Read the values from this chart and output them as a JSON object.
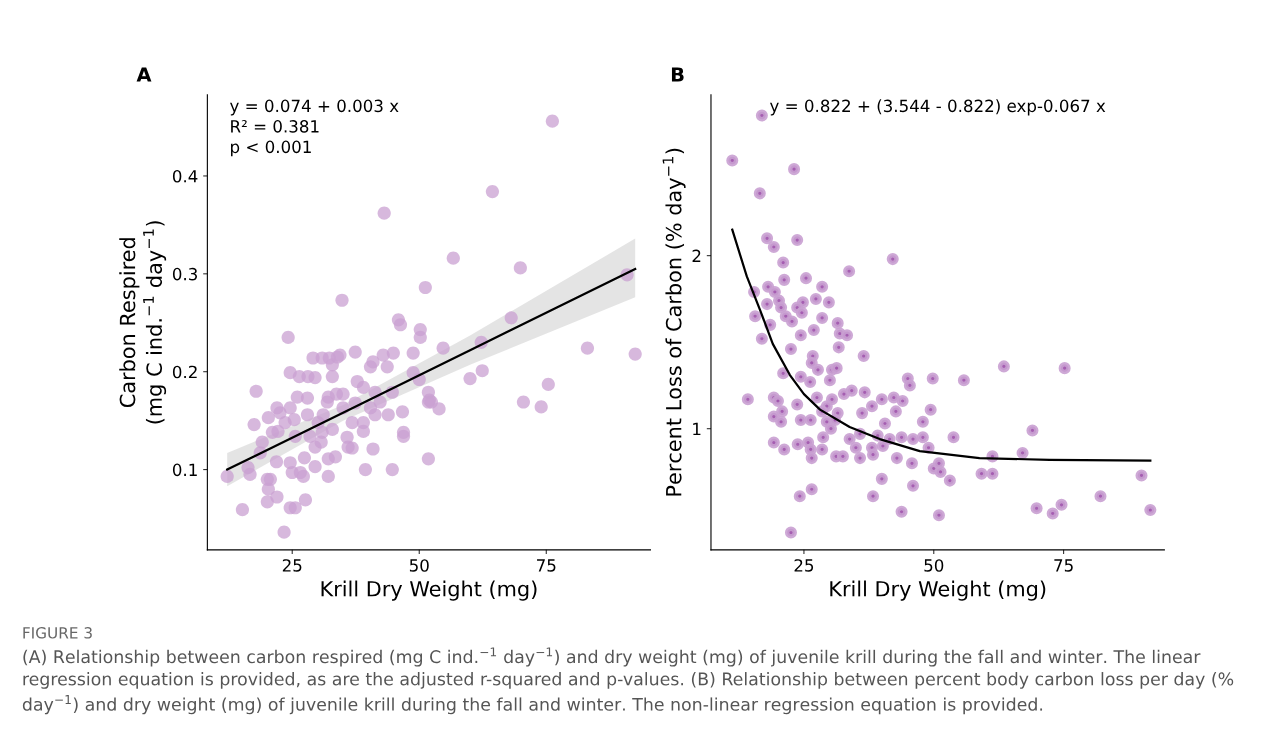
{
  "chart_data": [
    {
      "type": "scatter",
      "title": "A",
      "xlabel": "Krill Dry Weight (mg)",
      "ylabel": "Carbon Respired\n(mg C ind.$^{−1}$ day$^{−1}$)",
      "xlim": [
        8.3,
        95.5
      ],
      "ylim": [
        0.018,
        0.483
      ],
      "xticks": [
        25,
        50,
        75
      ],
      "yticks": [
        0.1,
        0.2,
        0.3,
        0.4
      ],
      "grid": false,
      "legend": false,
      "annotations": [
        "y = 0.074 + 0.003 x",
        "R² = 0.381",
        "p < 0.001"
      ],
      "series": [
        {
          "marker": "circle",
          "color": "#c9a0d2",
          "x": [
            12.2,
            15.2,
            16.3,
            16.7,
            17.9,
            17.5,
            19.1,
            18.7,
            20.1,
            20.3,
            20.7,
            20.1,
            22.0,
            21.9,
            22.0,
            20.3,
            21.1,
            22.2,
            22.6,
            23.6,
            23.4,
            24.6,
            25.6,
            24.2,
            24.6,
            24.6,
            25.0,
            25.6,
            26.0,
            24.6,
            25.4,
            26.4,
            26.6,
            27.2,
            27.6,
            27.4,
            28.0,
            28.0,
            28.1,
            28.5,
            29.5,
            29.1,
            29.5,
            29.5,
            30.1,
            30.9,
            30.7,
            30.9,
            31.1,
            31.9,
            32.1,
            32.3,
            32.9,
            32.9,
            32.1,
            32.1,
            32.9,
            33.5,
            33.9,
            33.7,
            34.4,
            34.8,
            35.0,
            35.0,
            35.8,
            36.0,
            36.8,
            36.8,
            37.4,
            37.4,
            37.8,
            39.0,
            39.0,
            39.0,
            39.4,
            40.4,
            40.4,
            40.9,
            40.9,
            41.3,
            41.3,
            42.3,
            42.9,
            43.1,
            43.7,
            43.9,
            44.7,
            44.7,
            44.9,
            45.9,
            46.3,
            46.7,
            46.9,
            46.9,
            48.8,
            48.8,
            50.2,
            50.2,
            50.0,
            51.2,
            51.8,
            51.8,
            51.8,
            76.2,
            64.4,
            56.7,
            69.9,
            90.9,
            68.1,
            54.7,
            62.2,
            83.1,
            92.5,
            62.4,
            60.0,
            75.4,
            52.0,
            52.4,
            53.9,
            70.5,
            74.0
          ],
          "values": [
            0.093,
            0.059,
            0.102,
            0.095,
            0.18,
            0.146,
            0.128,
            0.117,
            0.09,
            0.08,
            0.09,
            0.067,
            0.072,
            0.108,
            0.163,
            0.153,
            0.138,
            0.139,
            0.158,
            0.148,
            0.036,
            0.061,
            0.061,
            0.235,
            0.199,
            0.107,
            0.097,
            0.134,
            0.174,
            0.163,
            0.151,
            0.195,
            0.097,
            0.093,
            0.069,
            0.112,
            0.173,
            0.156,
            0.195,
            0.134,
            0.194,
            0.214,
            0.123,
            0.103,
            0.148,
            0.138,
            0.128,
            0.214,
            0.156,
            0.169,
            0.174,
            0.214,
            0.207,
            0.195,
            0.111,
            0.093,
            0.141,
            0.113,
            0.215,
            0.177,
            0.217,
            0.273,
            0.177,
            0.163,
            0.133,
            0.123,
            0.148,
            0.122,
            0.22,
            0.168,
            0.19,
            0.184,
            0.148,
            0.139,
            0.1,
            0.205,
            0.163,
            0.121,
            0.21,
            0.179,
            0.156,
            0.169,
            0.217,
            0.362,
            0.205,
            0.156,
            0.179,
            0.1,
            0.219,
            0.253,
            0.248,
            0.159,
            0.134,
            0.138,
            0.219,
            0.199,
            0.243,
            0.235,
            0.192,
            0.286,
            0.179,
            0.169,
            0.111,
            0.456,
            0.384,
            0.316,
            0.306,
            0.299,
            0.255,
            0.224,
            0.23,
            0.224,
            0.218,
            0.201,
            0.193,
            0.187,
            0.171,
            0.169,
            0.162,
            0.169,
            0.164
          ]
        },
        {
          "type": "line",
          "color": "#000000",
          "x": [
            12.2,
            35.0,
            60.0,
            92.5
          ],
          "values": [
            0.1,
            0.158,
            0.222,
            0.305
          ],
          "lower": [
            0.083,
            0.15,
            0.207,
            0.276
          ],
          "upper": [
            0.117,
            0.166,
            0.237,
            0.336
          ]
        }
      ]
    },
    {
      "type": "scatter",
      "title": "B",
      "xlabel": "Krill Dry Weight (mg)",
      "ylabel": "Percent Loss of Carbon (% day$^{−1}$)",
      "xlim": [
        7.1,
        94.4
      ],
      "ylim": [
        0.3,
        2.93
      ],
      "xticks": [
        25,
        50,
        75
      ],
      "yticks": [
        1,
        2
      ],
      "grid": false,
      "legend": false,
      "annotations": [
        "y = 0.822 + (3.544 - 0.822) exp-0.067 x",
        "FIGURE 3",
        "(A) Relationship between carbon respired (mg C ind.$^{−1}$ day$^{−1}$) and dry weight (mg) of juvenile krill during the fall and winter. The linear regression equation is provided, as are the adjusted r-squared and p-values. (B) Relationship between percent body carbon loss per day (% day$^{−1}$) and dry weight (mg) of juvenile krill during the fall and winter. The non-linear regression equation is provided."
      ],
      "series": [
        {
          "marker": "circle",
          "color": "#c9a0d2",
          "x": [
            16.9,
            11.2,
            23.1,
            16.5,
            17.9,
            23.7,
            19.2,
            21.0,
            42.1,
            21.2,
            25.4,
            33.7,
            18.1,
            19.4,
            28.5,
            15.4,
            17.9,
            20.2,
            24.8,
            27.3,
            29.8,
            15.6,
            20.6,
            21.5,
            22.7,
            23.7,
            24.6,
            28.5,
            18.5,
            24.4,
            26.9,
            31.5,
            31.9,
            33.3,
            16.9,
            22.5,
            31.7,
            36.5,
            26.7,
            26.5,
            27.7,
            30.4,
            31.3,
            21.0,
            24.4,
            26.2,
            30.0,
            45.0,
            45.4,
            49.8,
            14.2,
            19.2,
            20.0,
            23.7,
            27.5,
            30.4,
            32.7,
            34.2,
            36.7,
            40.0,
            42.3,
            44.0,
            29.4,
            38.1,
            28.5,
            31.5,
            36.2,
            42.7,
            49.4,
            20.8,
            19.2,
            20.6,
            24.4,
            26.3,
            29.4,
            31.0,
            30.2,
            40.6,
            47.9,
            28.7,
            33.8,
            35.8,
            39.2,
            41.5,
            43.8,
            46.0,
            47.9,
            19.2,
            21.2,
            23.8,
            25.8,
            26.3,
            26.5,
            28.5,
            31.2,
            32.5,
            35.0,
            35.8,
            38.1,
            38.3,
            40.2,
            42.9,
            45.8,
            49.0,
            50.0,
            40.0,
            38.3,
            24.2,
            26.5,
            46.0,
            43.8,
            22.5,
            63.5,
            75.2,
            55.8,
            69.0,
            53.8,
            61.3,
            67.1,
            51.0,
            51.3,
            59.2,
            61.3,
            53.1,
            90.0,
            82.1,
            69.8,
            74.6,
            72.9,
            91.7,
            51.0
          ],
          "values": [
            2.81,
            2.55,
            2.5,
            2.36,
            2.1,
            2.09,
            2.05,
            1.96,
            1.98,
            1.86,
            1.87,
            1.91,
            1.82,
            1.79,
            1.82,
            1.79,
            1.72,
            1.74,
            1.73,
            1.75,
            1.73,
            1.65,
            1.7,
            1.65,
            1.62,
            1.7,
            1.67,
            1.64,
            1.6,
            1.54,
            1.57,
            1.61,
            1.55,
            1.54,
            1.52,
            1.46,
            1.47,
            1.42,
            1.42,
            1.38,
            1.34,
            1.34,
            1.35,
            1.32,
            1.3,
            1.27,
            1.28,
            1.29,
            1.25,
            1.29,
            1.17,
            1.18,
            1.16,
            1.14,
            1.18,
            1.17,
            1.2,
            1.22,
            1.21,
            1.17,
            1.18,
            1.16,
            1.13,
            1.13,
            1.1,
            1.09,
            1.09,
            1.1,
            1.11,
            1.1,
            1.07,
            1.04,
            1.05,
            1.05,
            1.04,
            1.05,
            1.0,
            1.03,
            1.04,
            0.95,
            0.94,
            0.97,
            0.96,
            0.94,
            0.95,
            0.94,
            0.95,
            0.92,
            0.88,
            0.91,
            0.92,
            0.88,
            0.83,
            0.88,
            0.84,
            0.84,
            0.89,
            0.83,
            0.89,
            0.85,
            0.9,
            0.83,
            0.8,
            0.89,
            0.77,
            0.71,
            0.61,
            0.61,
            0.65,
            0.67,
            0.52,
            0.4,
            1.36,
            1.35,
            1.28,
            0.99,
            0.95,
            0.84,
            0.86,
            0.8,
            0.75,
            0.74,
            0.74,
            0.7,
            0.73,
            0.61,
            0.54,
            0.56,
            0.51,
            0.53,
            0.5
          ]
        },
        {
          "type": "line",
          "color": "#000000",
          "x": [
            11.2,
            14.0,
            16.5,
            19.0,
            22.3,
            25.0,
            28.1,
            33.8,
            39.6,
            47.3,
            58.8,
            72.3,
            91.7
          ],
          "values": [
            2.15,
            1.88,
            1.69,
            1.49,
            1.31,
            1.2,
            1.11,
            1.01,
            0.94,
            0.87,
            0.83,
            0.82,
            0.815
          ]
        }
      ]
    }
  ]
}
